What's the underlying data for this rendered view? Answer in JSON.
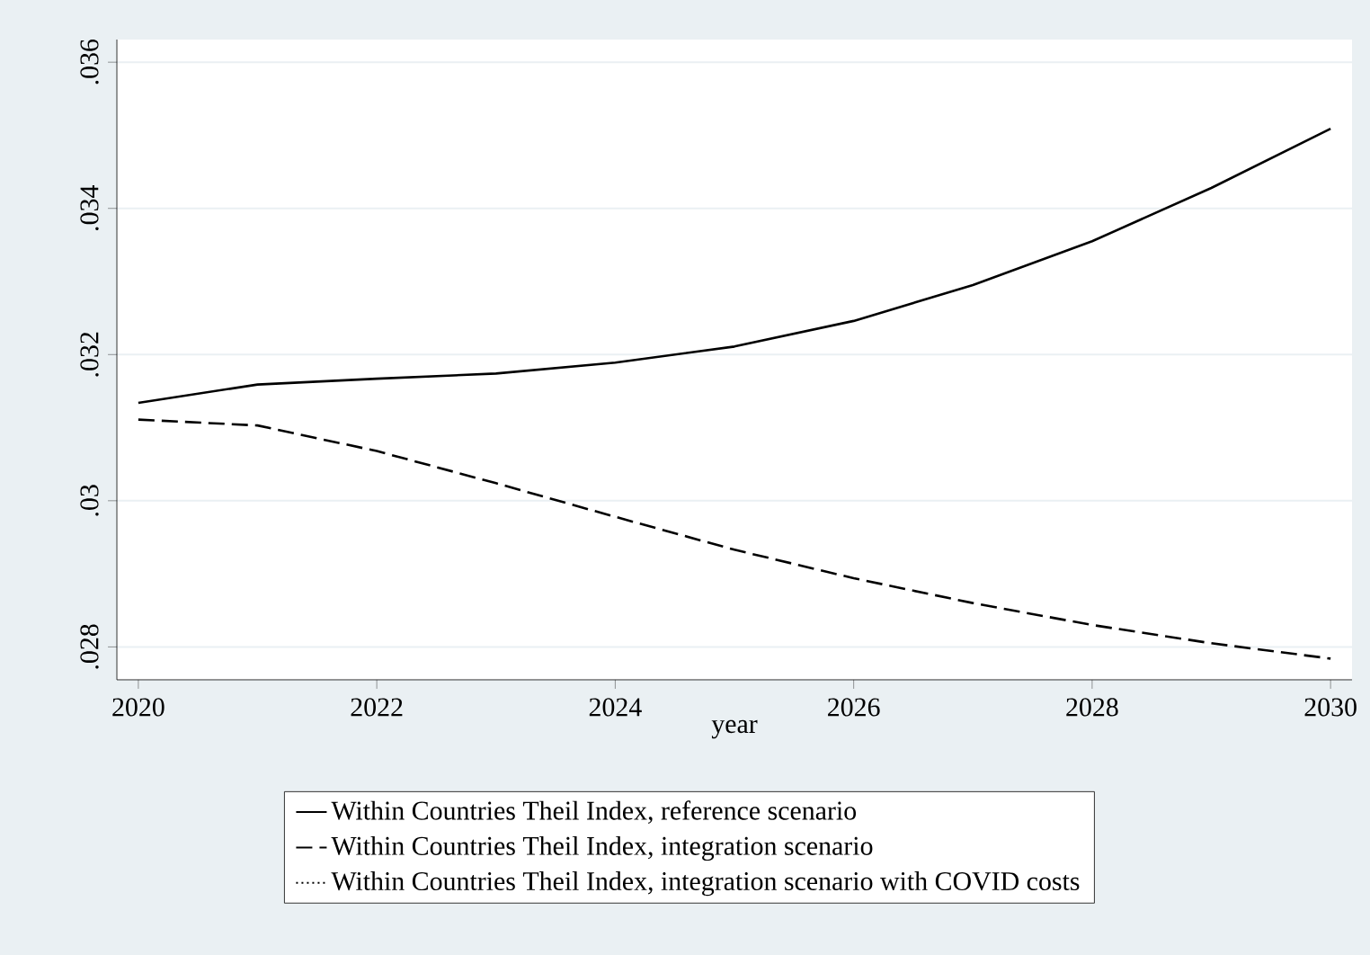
{
  "chart_data": {
    "type": "line",
    "xlabel": "year",
    "x": [
      2020,
      2021,
      2022,
      2023,
      2024,
      2025,
      2026,
      2027,
      2028,
      2029,
      2030
    ],
    "series": [
      {
        "name": "Within Countries Theil Index, reference scenario",
        "color": "#000000",
        "line_style": "solid",
        "values": [
          0.03134,
          0.03159,
          0.03167,
          0.03174,
          0.03189,
          0.03211,
          0.03246,
          0.03295,
          0.03355,
          0.03428,
          0.03509
        ]
      },
      {
        "name": "Within Countries Theil Index, integration scenario",
        "color": "#000000",
        "line_style": "dashed",
        "values": [
          0.03111,
          0.03103,
          0.03068,
          0.03024,
          0.02978,
          0.02933,
          0.02894,
          0.0286,
          0.0283,
          0.02805,
          0.02784
        ]
      },
      {
        "name": "Within Countries Theil Index, integration scenario with COVID costs",
        "color": "#000000",
        "line_style": "dotted",
        "values": [
          null,
          null,
          null,
          null,
          null,
          null,
          null,
          null,
          null,
          null,
          null
        ]
      }
    ],
    "xlim": [
      2019.82,
      2030.18
    ],
    "xticks": [
      2020,
      2022,
      2024,
      2026,
      2028,
      2030
    ],
    "ylim": [
      0.02755,
      0.03631
    ],
    "yticks": [
      {
        "value": 0.028,
        "label": ".028"
      },
      {
        "value": 0.03,
        "label": ".03"
      },
      {
        "value": 0.032,
        "label": ".032"
      },
      {
        "value": 0.034,
        "label": ".034"
      },
      {
        "value": 0.036,
        "label": ".036"
      }
    ],
    "grid": "y",
    "legend": "bottom"
  }
}
